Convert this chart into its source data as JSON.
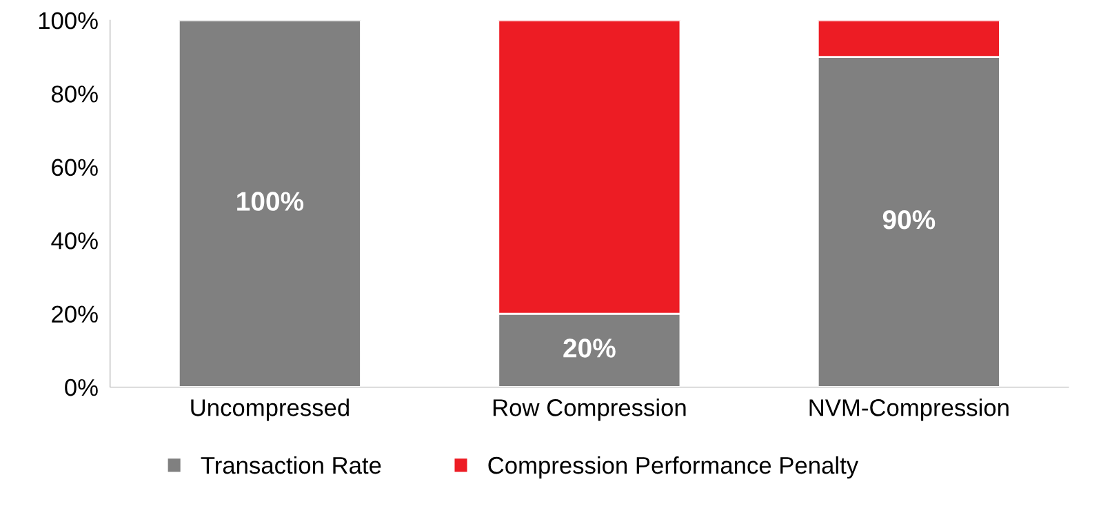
{
  "chart_data": {
    "type": "bar",
    "stacked": true,
    "categories": [
      "Uncompressed",
      "Row Compression",
      "NVM-Compression"
    ],
    "series": [
      {
        "name": "Transaction Rate",
        "color": "#808080",
        "values": [
          100,
          20,
          90
        ],
        "value_labels": [
          "100%",
          "20%",
          "90%"
        ]
      },
      {
        "name": "Compression Performance Penalty",
        "color": "#ed1c24",
        "values": [
          null,
          80,
          10
        ]
      }
    ],
    "ylim": [
      0,
      100
    ],
    "yticks": [
      {
        "value": 0,
        "label": "0%"
      },
      {
        "value": 20,
        "label": "20%"
      },
      {
        "value": 40,
        "label": "40%"
      },
      {
        "value": 60,
        "label": "60%"
      },
      {
        "value": 80,
        "label": "80%"
      },
      {
        "value": 100,
        "label": "100%"
      }
    ],
    "grid": false,
    "legend": "bottom"
  }
}
